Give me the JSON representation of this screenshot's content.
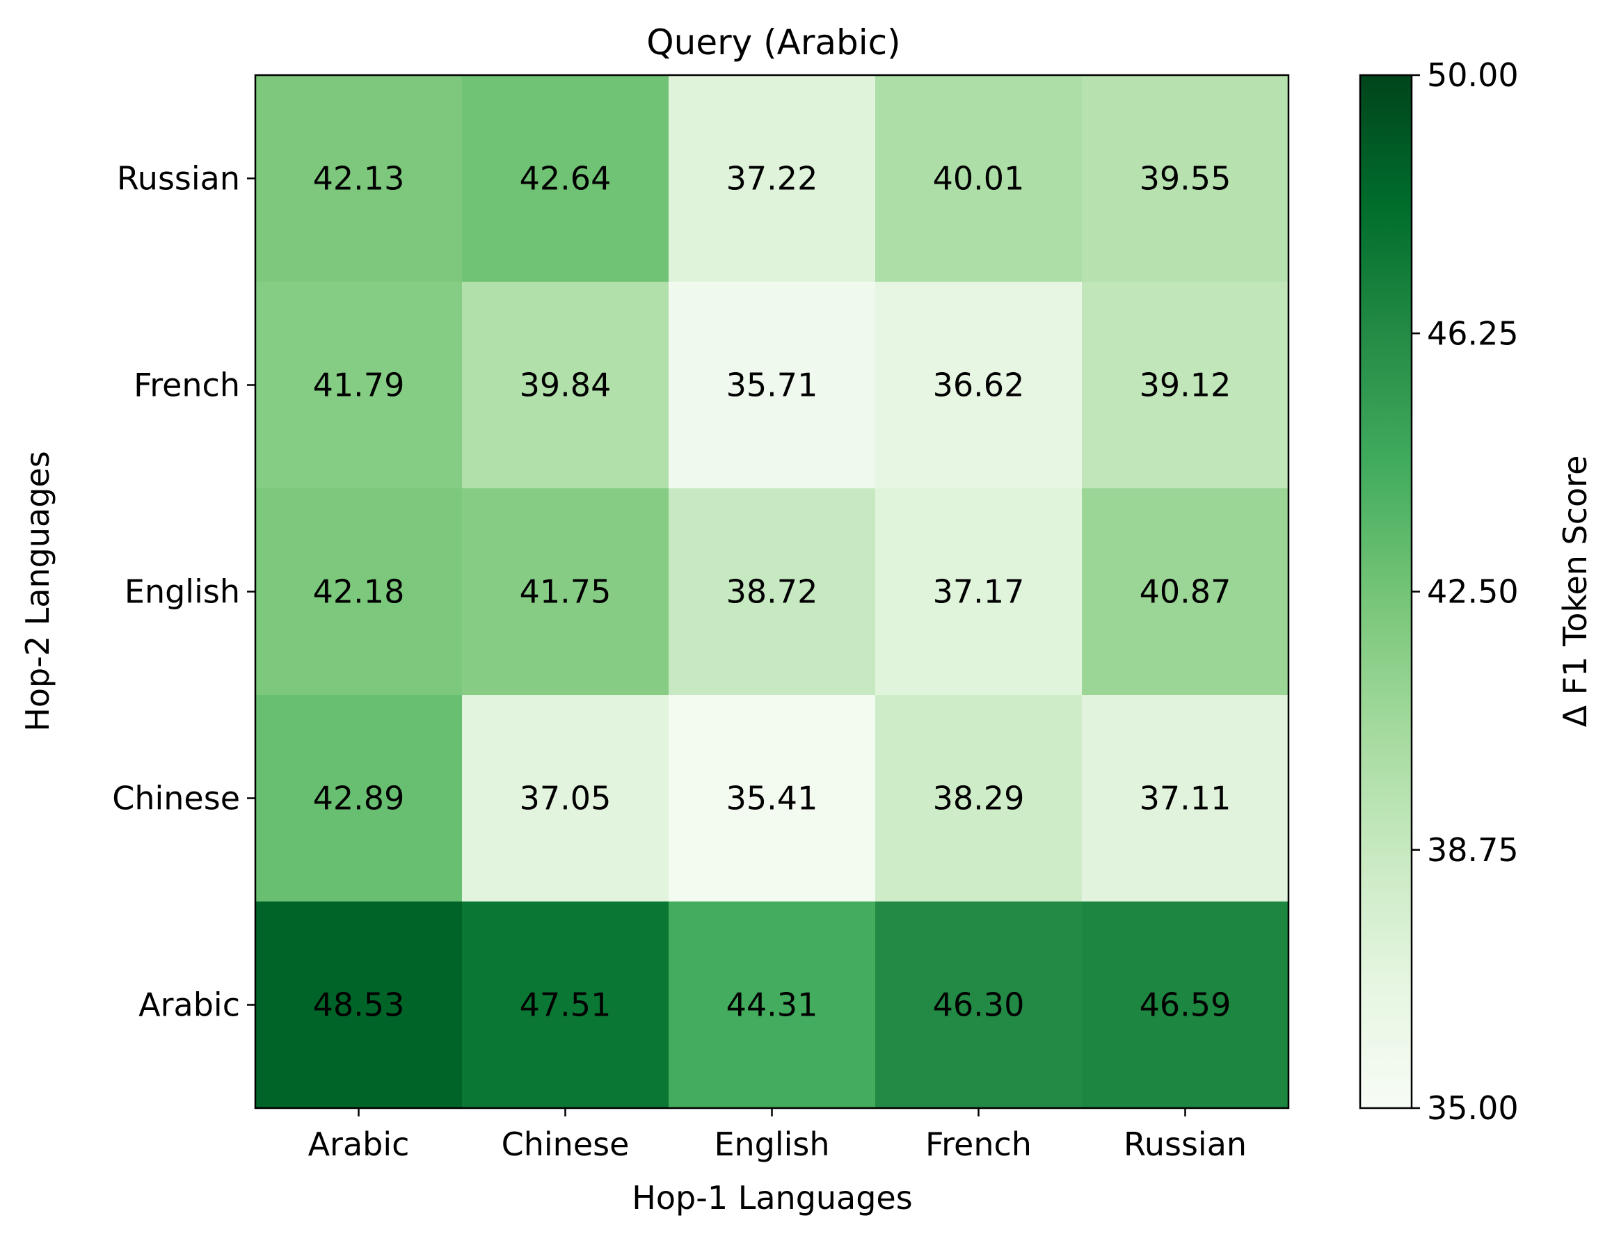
{
  "chart_data": {
    "type": "heatmap",
    "title": "Query (Arabic)",
    "xlabel": "Hop-1 Languages",
    "ylabel": "Hop-2 Languages",
    "x_categories": [
      "Arabic",
      "Chinese",
      "English",
      "French",
      "Russian"
    ],
    "y_categories_top_to_bottom": [
      "Russian",
      "French",
      "English",
      "Chinese",
      "Arabic"
    ],
    "values": [
      [
        42.13,
        42.64,
        37.22,
        40.01,
        39.55
      ],
      [
        41.79,
        39.84,
        35.71,
        36.62,
        39.12
      ],
      [
        42.18,
        41.75,
        38.72,
        37.17,
        40.87
      ],
      [
        42.89,
        37.05,
        35.41,
        38.29,
        37.11
      ],
      [
        48.53,
        47.51,
        44.31,
        46.3,
        46.59
      ]
    ],
    "value_labels": [
      [
        "42.13",
        "42.64",
        "37.22",
        "40.01",
        "39.55"
      ],
      [
        "41.79",
        "39.84",
        "35.71",
        "36.62",
        "39.12"
      ],
      [
        "42.18",
        "41.75",
        "38.72",
        "37.17",
        "40.87"
      ],
      [
        "42.89",
        "37.05",
        "35.41",
        "38.29",
        "37.11"
      ],
      [
        "48.53",
        "47.51",
        "44.31",
        "46.30",
        "46.59"
      ]
    ],
    "colorbar": {
      "label": "Δ F1 Token Score",
      "range": [
        35.0,
        50.0
      ],
      "ticks": [
        35.0,
        38.75,
        42.5,
        46.25,
        50.0
      ],
      "tick_labels": [
        "35.00",
        "38.75",
        "42.50",
        "46.25",
        "50.00"
      ],
      "colormap": "Greens",
      "colormap_stops": [
        "#f7fcf5",
        "#e5f5e0",
        "#c7e9c0",
        "#a1d99b",
        "#74c476",
        "#41ab5d",
        "#238b45",
        "#006d2c",
        "#00441b"
      ]
    },
    "grid": false
  }
}
